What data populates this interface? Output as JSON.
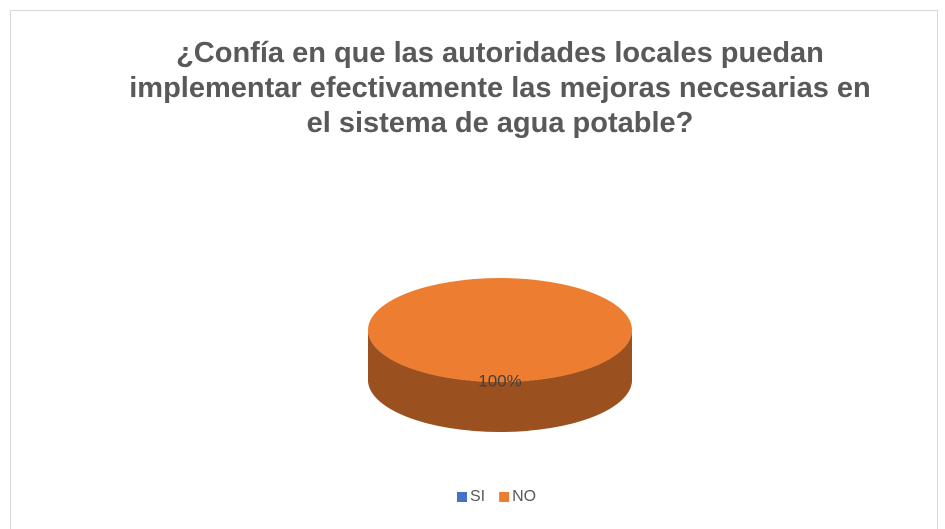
{
  "chart_data": {
    "type": "pie",
    "title": "¿Confía en que las autoridades locales puedan implementar efectivamente las mejoras necesarias en el sistema de agua potable?",
    "categories": [
      "SI",
      "NO"
    ],
    "values": [
      0,
      100
    ],
    "value_labels": [
      null,
      "100%"
    ],
    "colors": [
      "#4472c4",
      "#ed7d31"
    ],
    "legend": "bottom"
  }
}
